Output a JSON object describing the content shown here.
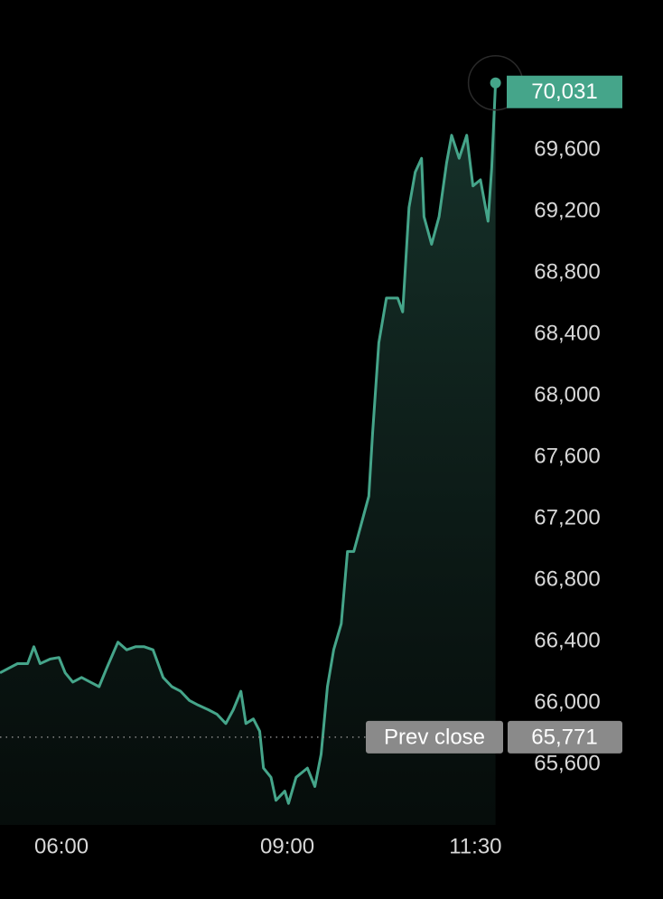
{
  "chart_data": {
    "type": "line",
    "x": [
      "05:11",
      "05:18",
      "05:25",
      "05:33",
      "05:38",
      "05:43",
      "05:51",
      "05:58",
      "06:03",
      "06:09",
      "06:16",
      "06:23",
      "06:30",
      "06:36",
      "06:45",
      "06:52",
      "06:59",
      "07:06",
      "07:13",
      "07:21",
      "07:28",
      "07:35",
      "07:42",
      "07:49",
      "07:57",
      "08:04",
      "08:11",
      "08:17",
      "08:23",
      "08:27",
      "08:33",
      "08:38",
      "08:41",
      "08:47",
      "08:51",
      "08:58",
      "09:01",
      "09:07",
      "09:16",
      "09:22",
      "09:27",
      "09:32",
      "09:37",
      "09:43",
      "09:48",
      "09:53",
      "09:59",
      "10:05",
      "10:08",
      "10:13",
      "10:19",
      "10:28",
      "10:32",
      "10:37",
      "10:42",
      "10:47",
      "10:49",
      "10:55",
      "11:01",
      "11:07",
      "11:11",
      "11:17",
      "11:23",
      "11:28",
      "11:34",
      "11:40",
      "11:43",
      "11:46"
    ],
    "values": [
      66190,
      66220,
      66250,
      66250,
      66360,
      66250,
      66280,
      66290,
      66190,
      66130,
      66160,
      66130,
      66100,
      66220,
      66390,
      66340,
      66360,
      66360,
      66340,
      66160,
      66100,
      66070,
      66010,
      65980,
      65950,
      65920,
      65860,
      65950,
      66070,
      65860,
      65890,
      65810,
      65570,
      65510,
      65360,
      65420,
      65340,
      65510,
      65570,
      65450,
      65660,
      66100,
      66340,
      66510,
      66980,
      66980,
      67160,
      67340,
      67750,
      68340,
      68630,
      68630,
      68540,
      69220,
      69450,
      69540,
      69160,
      68980,
      69160,
      69510,
      69690,
      69540,
      69690,
      69360,
      69400,
      69130,
      69480,
      70031
    ],
    "color": "#45a58a",
    "xlim": [
      "05:11",
      "11:46"
    ],
    "xticks": [
      "06:00",
      "09:00",
      "11:30"
    ],
    "ylim": [
      65200,
      70500
    ],
    "yticks": [
      {
        "value": 65600,
        "label": "65,600"
      },
      {
        "value": 66000,
        "label": "66,000"
      },
      {
        "value": 66400,
        "label": "66,400"
      },
      {
        "value": 66800,
        "label": "66,800"
      },
      {
        "value": 67200,
        "label": "67,200"
      },
      {
        "value": 67600,
        "label": "67,600"
      },
      {
        "value": 68000,
        "label": "68,000"
      },
      {
        "value": 68400,
        "label": "68,400"
      },
      {
        "value": 68800,
        "label": "68,800"
      },
      {
        "value": 69200,
        "label": "69,200"
      },
      {
        "value": 69600,
        "label": "69,600"
      }
    ],
    "last_price": {
      "value": 70031,
      "label": "70,031"
    },
    "prev_close": {
      "value": 65771,
      "label": "65,771",
      "text": "Prev close"
    }
  }
}
